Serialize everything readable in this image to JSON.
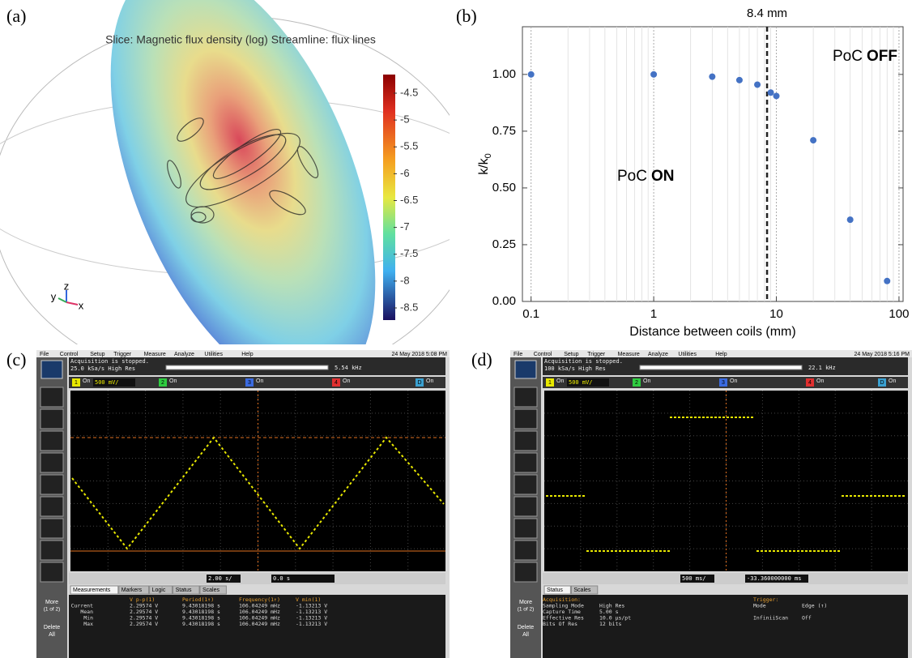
{
  "panel_labels": [
    "(a)",
    "(b)",
    "(c)",
    "(d)"
  ],
  "panel_a": {
    "title": "Slice: Magnetic flux density (log) Streamline: flux lines",
    "colorbar_ticks": [
      -4.5,
      -5,
      -5.5,
      -6,
      -6.5,
      -7,
      -7.5,
      -8,
      -8.5
    ],
    "axes": [
      "z",
      "y",
      "x"
    ]
  },
  "chart_data": {
    "type": "scatter",
    "color": "#4472c4",
    "x": [
      0.1,
      1,
      3,
      5,
      7,
      9,
      10,
      20,
      40,
      80
    ],
    "values": [
      1.0,
      1.0,
      0.99,
      0.975,
      0.955,
      0.92,
      0.905,
      0.71,
      0.36,
      0.09
    ],
    "xlabel": "Distance between coils (mm)",
    "ylabel": "k/k",
    "ylabel_sub": "0",
    "log_x": true,
    "xlim": [
      0.085,
      108
    ],
    "ylim": [
      0,
      1.21
    ],
    "xticks": [
      0.1,
      1,
      10,
      100
    ],
    "xminorticks": [
      0.2,
      0.3,
      0.4,
      0.5,
      0.6,
      0.7,
      0.8,
      0.9,
      2,
      3,
      4,
      5,
      6,
      7,
      8,
      9,
      20,
      30,
      40,
      50,
      60,
      70,
      80,
      90
    ],
    "yticks": [
      {
        "value": 0,
        "label": "0.00"
      },
      0.25,
      {
        "value": 0.5,
        "label": "0.50"
      },
      0.75,
      {
        "value": 1,
        "label": "1.00"
      }
    ],
    "vline": {
      "value": 8.4,
      "label": "8.4 mm"
    },
    "annotations": [
      {
        "text": "PoC",
        "bold": "ON"
      },
      {
        "text": "PoC",
        "bold": "OFF"
      }
    ]
  },
  "scope_c": {
    "menu": [
      "File",
      "Control",
      "Setup",
      "Trigger",
      "Measure",
      "Analyze",
      "Utilities",
      "Help"
    ],
    "date": "24 May 2018  5:08 PM",
    "status": "Acquisition is stopped.",
    "rate": "25.0 kSa/s   High Res",
    "freq": "5.54 kHz",
    "channels": [
      {
        "n": "1",
        "state": "On"
      },
      {
        "n": "2",
        "state": "On"
      },
      {
        "n": "3",
        "state": "On"
      },
      {
        "n": "4",
        "state": "On"
      },
      {
        "n": "D",
        "state": "On"
      }
    ],
    "volts": "500 mV/",
    "timebase": "2.00 s/",
    "delay": "0.0 s",
    "buttons": [
      "More",
      "(1 of 2)",
      "Delete",
      "All"
    ],
    "tabs": [
      "Measurements",
      "Markers",
      "Logic",
      "Status",
      "Scales"
    ],
    "table": [
      [
        "",
        "V p-p(1)",
        "Period(1↑)",
        "Frequency(1↑)",
        "V min(1)"
      ],
      [
        "Current",
        "2.29574 V",
        "9.43018198 s",
        "106.04249 mHz",
        "-1.13213 V"
      ],
      [
        "Mean",
        "2.29574 V",
        "9.43018198 s",
        "106.04249 mHz",
        "-1.13213 V"
      ],
      [
        "Min",
        "2.29574 V",
        "9.43018198 s",
        "106.04249 mHz",
        "-1.13213 V"
      ],
      [
        "Max",
        "2.29574 V",
        "9.43018198 s",
        "106.04249 mHz",
        "-1.13213 V"
      ]
    ]
  },
  "scope_d": {
    "menu": [
      "File",
      "Control",
      "Setup",
      "Trigger",
      "Measure",
      "Analyze",
      "Utilities",
      "Help"
    ],
    "date": "24 May 2018  5:16 PM",
    "status": "Acquisition is stopped.",
    "rate": "100 kSa/s   High Res",
    "freq": "22.1 kHz",
    "channels": [
      {
        "n": "1",
        "state": "On"
      },
      {
        "n": "2",
        "state": "On"
      },
      {
        "n": "3",
        "state": "On"
      },
      {
        "n": "4",
        "state": "On"
      },
      {
        "n": "D",
        "state": "On"
      }
    ],
    "volts": "500 mV/",
    "timebase": "500 ms/",
    "delay": "-33.360000000 ms",
    "buttons": [
      "More",
      "(1 of 2)",
      "Delete",
      "All"
    ],
    "tabs": [
      "Status",
      "Scales"
    ],
    "table": [
      [
        "Acquisition:",
        "",
        "Trigger:",
        ""
      ],
      [
        "Sampling Mode",
        "High Res",
        "Mode",
        "Edge (↑)"
      ],
      [
        "Capture Time",
        "5.00 s",
        "",
        ""
      ],
      [
        "Effective Res",
        "10.0 µs/pt",
        "InfiniiScan",
        "Off"
      ],
      [
        "Bits Of Res",
        "12 bits",
        "",
        ""
      ]
    ]
  }
}
